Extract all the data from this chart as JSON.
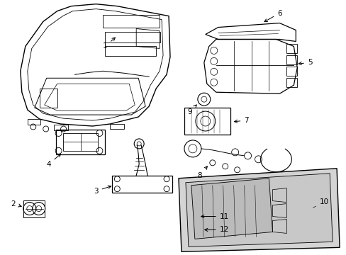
{
  "background_color": "#ffffff",
  "figure_width": 4.89,
  "figure_height": 3.6,
  "dpi": 100,
  "line_color": "#000000",
  "label_fontsize": 7.5,
  "gray_panel": "#d4d4d4",
  "gray_inner": "#c8c8c8"
}
